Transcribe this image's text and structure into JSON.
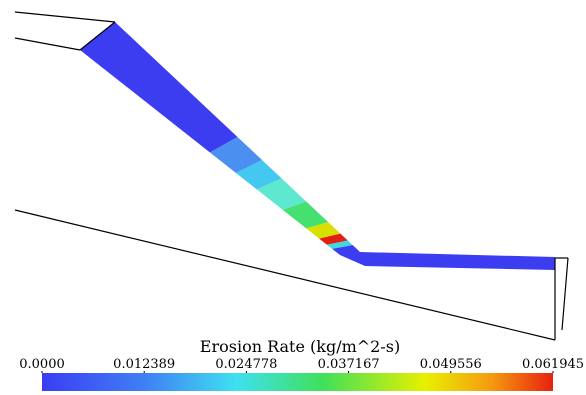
{
  "colorbar": {
    "title": "Erosion Rate (kg/m^2-s)",
    "lim": [
      0,
      0.061945
    ],
    "ticks": [
      {
        "value": 0,
        "label": "0.0000"
      },
      0.012389,
      0.024778,
      0.037167,
      0.049556,
      0.061945
    ]
  }
}
